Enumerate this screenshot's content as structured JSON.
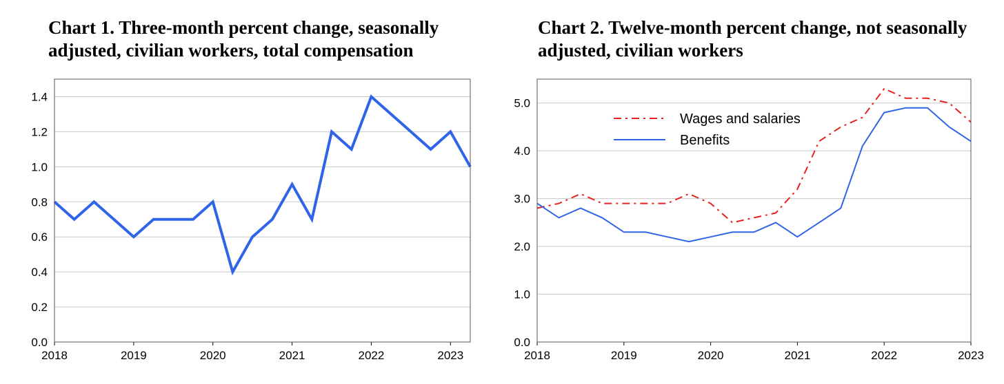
{
  "chart_data": [
    {
      "type": "line",
      "title": "Chart 1. Three-month percent change, seasonally adjusted, civilian workers, total compensation",
      "xlabel": "",
      "ylabel": "",
      "x_ticks": [
        "2018",
        "2019",
        "2020",
        "2021",
        "2022",
        "2023"
      ],
      "y_ticks": [
        "0.0",
        "0.2",
        "0.4",
        "0.6",
        "0.8",
        "1.0",
        "1.2",
        "1.4"
      ],
      "xlim": [
        2018,
        2023.25
      ],
      "ylim": [
        0,
        1.5
      ],
      "grid": "horizontal",
      "line_color": "#2f64e8",
      "series": [
        {
          "x": [
            2018,
            2018.25,
            2018.5,
            2018.75,
            2019,
            2019.25,
            2019.5,
            2019.75,
            2020,
            2020.25,
            2020.5,
            2020.75,
            2021,
            2021.25,
            2021.5,
            2021.75,
            2022,
            2022.25,
            2022.5,
            2022.75,
            2023,
            2023.25
          ],
          "values": [
            0.8,
            0.7,
            0.8,
            0.7,
            0.6,
            0.7,
            0.7,
            0.7,
            0.8,
            0.4,
            0.6,
            0.7,
            0.9,
            0.7,
            1.2,
            1.1,
            1.4,
            1.3,
            1.2,
            1.1,
            1.2,
            1.0
          ]
        }
      ]
    },
    {
      "type": "line",
      "title": "Chart 2. Twelve-month percent change, not seasonally adjusted, civilian workers",
      "xlabel": "",
      "ylabel": "",
      "x_ticks": [
        "2018",
        "2019",
        "2020",
        "2021",
        "2022",
        "2023"
      ],
      "y_ticks": [
        "0.0",
        "1.0",
        "2.0",
        "3.0",
        "4.0",
        "5.0"
      ],
      "xlim": [
        2018,
        2023
      ],
      "ylim": [
        0,
        5.5
      ],
      "grid": "horizontal",
      "legend": "top-left",
      "series": [
        {
          "name": "Wages and salaries",
          "color": "#e8201c",
          "style": "dash-dot",
          "x": [
            2018,
            2018.25,
            2018.5,
            2018.75,
            2019,
            2019.25,
            2019.5,
            2019.75,
            2020,
            2020.25,
            2020.5,
            2020.75,
            2021,
            2021.25,
            2021.5,
            2021.75,
            2022,
            2022.25,
            2022.5,
            2022.75,
            2023
          ],
          "values": [
            2.8,
            2.9,
            3.1,
            2.9,
            2.9,
            2.9,
            2.9,
            3.1,
            2.9,
            2.5,
            2.6,
            2.7,
            3.2,
            4.2,
            4.5,
            4.7,
            5.3,
            5.1,
            5.1,
            5.0,
            4.6
          ]
        },
        {
          "name": "Benefits",
          "color": "#2f64e8",
          "style": "solid",
          "x": [
            2018,
            2018.25,
            2018.5,
            2018.75,
            2019,
            2019.25,
            2019.5,
            2019.75,
            2020,
            2020.25,
            2020.5,
            2020.75,
            2021,
            2021.25,
            2021.5,
            2021.75,
            2022,
            2022.25,
            2022.5,
            2022.75,
            2023
          ],
          "values": [
            2.9,
            2.6,
            2.8,
            2.6,
            2.3,
            2.3,
            2.2,
            2.1,
            2.2,
            2.3,
            2.3,
            2.5,
            2.2,
            2.5,
            2.8,
            4.1,
            4.8,
            4.9,
            4.9,
            4.5,
            4.2
          ]
        }
      ]
    }
  ]
}
